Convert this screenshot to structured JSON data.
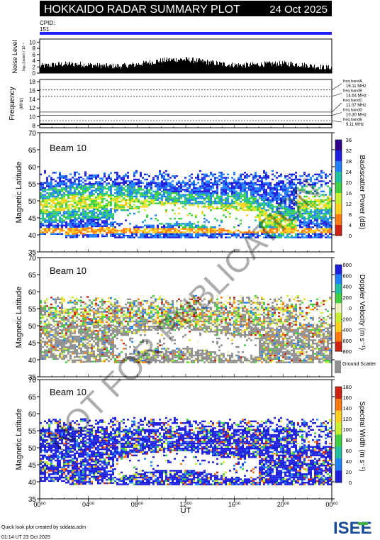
{
  "header": {
    "title": "HOKKAIDO RADAR SUMMARY PLOT",
    "date": "24 Oct 2025",
    "cpid_label": "CPID:",
    "cpid_value": "151"
  },
  "noise_panel": {
    "ylabel": "Noise Level",
    "sublabel": "log₁₀(noise) / 10⁻⁵",
    "yticks": [
      "0",
      "2",
      "4",
      "6",
      "8",
      "10"
    ],
    "ylim": [
      0,
      11
    ]
  },
  "freq_panel": {
    "ylabel": "Frequency",
    "unit": "(MHz)",
    "yticks": [
      "8",
      "10",
      "12",
      "14",
      "16",
      "18"
    ],
    "ylim": [
      7.5,
      18.5
    ],
    "bands": [
      {
        "label": "freq bandA",
        "value": "16.11 MHz",
        "freq": 16.11
      },
      {
        "label": "freq bandB",
        "value": "14.64 MHz",
        "freq": 14.64
      },
      {
        "label": "freq bandC",
        "value": "11.07 MHz",
        "freq": 11.07
      },
      {
        "label": "freq bandD",
        "value": "10.30 MHz",
        "freq": 10.3
      },
      {
        "label": "freq bandE",
        "value": "9.11 MHz",
        "freq": 9.11
      }
    ]
  },
  "panels": [
    {
      "beam_label": "Beam 10",
      "ylabel": "Magnetic Latitude",
      "yticks": [
        "35",
        "40",
        "45",
        "50",
        "55",
        "60",
        "65",
        "70"
      ],
      "cbar_label": "Backscatter Power (dB)",
      "cbar_ticks": [
        "0",
        "4",
        "8",
        "12",
        "16",
        "20",
        "24",
        "28",
        "32",
        "36"
      ],
      "cbar_colors": [
        "#d02010",
        "#ff7a10",
        "#ffd020",
        "#c8f030",
        "#40d040",
        "#20c0a0",
        "#2080ff",
        "#2020e0",
        "#300090"
      ]
    },
    {
      "beam_label": "Beam 10",
      "ylabel": "Magnetic Latitude",
      "yticks": [
        "35",
        "40",
        "45",
        "50",
        "55",
        "60",
        "65",
        "70"
      ],
      "cbar_label": "Doppler Velocity (m s⁻¹)",
      "cbar_ticks": [
        "-800",
        "-600",
        "-400",
        "-200",
        "0",
        "200",
        "400",
        "600",
        "800"
      ],
      "cbar_colors": [
        "#d02010",
        "#ff7a10",
        "#ffd020",
        "#c8f030",
        "#f0f0c0",
        "#40d040",
        "#20c0a0",
        "#2080ff",
        "#2020e0"
      ],
      "ground_scatter_label": "Ground Scatter",
      "ground_scatter_color": "#909090"
    },
    {
      "beam_label": "Beam 10",
      "ylabel": "Magnetic Latitude",
      "yticks": [
        "35",
        "40",
        "45",
        "50",
        "55",
        "60",
        "65",
        "70"
      ],
      "cbar_label": "Spectral Width (m s⁻¹)",
      "cbar_ticks": [
        "0",
        "20",
        "40",
        "60",
        "80",
        "100",
        "120",
        "140",
        "160",
        "180"
      ],
      "cbar_colors": [
        "#2020e0",
        "#2080ff",
        "#20c0a0",
        "#40d040",
        "#c8f030",
        "#ffd020",
        "#ff7a10",
        "#d02010"
      ]
    }
  ],
  "x_axis": {
    "ticks": [
      "00⁰⁰",
      "04⁰⁰",
      "08⁰⁰",
      "12⁰⁰",
      "16⁰⁰",
      "20⁰⁰",
      "00⁰⁰"
    ],
    "label": "UT"
  },
  "footer": {
    "credit": "Quick look plot created by sddata.adm",
    "created": "01:14 UT 23 Oct 2025",
    "logo_text": "ISEE"
  },
  "watermark": "NOT FOR PUBLICATION",
  "colors": {
    "accent_bar": "#2020ff",
    "ground_scatter": "#909090",
    "logo_blue": "#1a4a9a",
    "logo_green": "#40b040"
  },
  "chart_data": {
    "type": "heatmap",
    "title": "HOKKAIDO RADAR SUMMARY PLOT",
    "x_range_hours": [
      0,
      24
    ],
    "y_range_mlat": [
      35,
      70
    ],
    "series": [
      {
        "name": "Backscatter Power (dB)",
        "range": [
          0,
          36
        ]
      },
      {
        "name": "Doppler Velocity (m s⁻¹)",
        "range": [
          -800,
          800
        ]
      },
      {
        "name": "Spectral Width (m s⁻¹)",
        "range": [
          0,
          180
        ]
      }
    ]
  }
}
